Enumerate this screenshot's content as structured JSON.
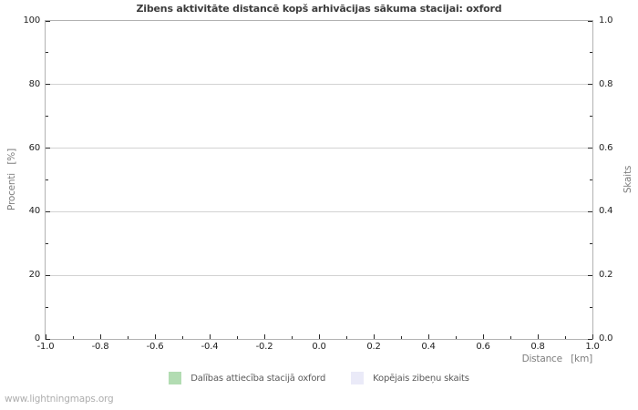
{
  "page": {
    "footer": "www.lightningmaps.org"
  },
  "chart_data": {
    "type": "line",
    "title": "Zibens aktivitāte distancē kopš arhivācijas sākuma stacijai: oxford",
    "xlabel": "Distance   [km]",
    "ylabel_left": "Procenti   [%]",
    "ylabel_right": "Skaits",
    "xlim": [
      -1.0,
      1.0
    ],
    "ylim_left": [
      0,
      100
    ],
    "ylim_right": [
      0.0,
      1.0
    ],
    "x_tick_labels": [
      "-1.0",
      "-0.8",
      "-0.6",
      "-0.4",
      "-0.2",
      "0.0",
      "0.2",
      "0.4",
      "0.6",
      "0.8",
      "1.0"
    ],
    "y_tick_labels_left": [
      "0",
      "20",
      "40",
      "60",
      "80",
      "100"
    ],
    "y_tick_labels_right": [
      "0.0",
      "0.2",
      "0.4",
      "0.6",
      "0.8",
      "1.0"
    ],
    "minor_ticks_per_interval": 1,
    "grid": true,
    "legend_position": "bottom-center",
    "colors": {
      "grid": "#d2d2d2",
      "border": "#b2b2b2",
      "tick": "#2a2a2a",
      "title": "#3d3d3d",
      "tick_label": "#1f1f1f",
      "axis_label": "#7d7d7d",
      "legend_text": "#5a5a5a",
      "footer": "#aeaeae",
      "series_ratio": "#b2dcb2",
      "series_total": "#eaeaf8"
    },
    "legend": [
      {
        "label": "Dalības attiecība stacijā oxford",
        "swatch_color": "#b2dcb2"
      },
      {
        "label": "Kopējais zibeņu skaits",
        "swatch_color": "#eaeaf8"
      }
    ],
    "series": [
      {
        "name": "Dalības attiecība stacijā oxford",
        "values": []
      },
      {
        "name": "Kopējais zibeņu skaits",
        "values": []
      }
    ]
  }
}
